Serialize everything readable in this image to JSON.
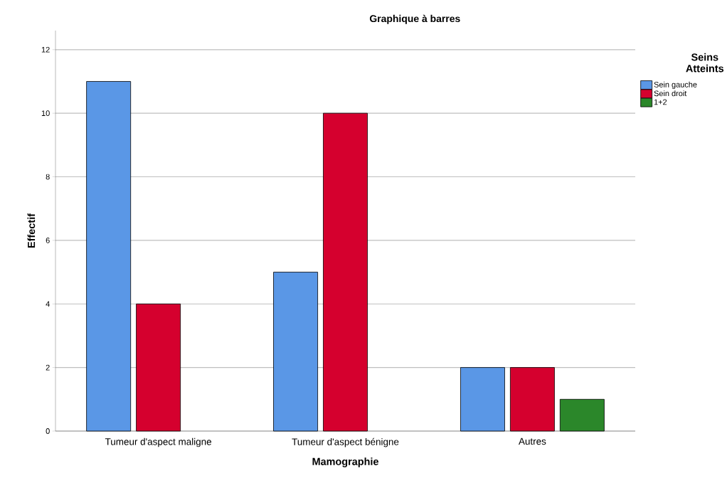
{
  "chart_data": {
    "type": "bar",
    "title": "Graphique à barres",
    "xlabel": "Mamographie",
    "ylabel": "Effectif",
    "legend_title": "Seins Atteints",
    "categories": [
      "Tumeur d'aspect maligne",
      "Tumeur d'aspect bénigne",
      "Autres"
    ],
    "series": [
      {
        "name": "Sein gauche",
        "color": "#5a97e6",
        "values": [
          11,
          5,
          2
        ]
      },
      {
        "name": "Sein droit",
        "color": "#d5002e",
        "values": [
          4,
          10,
          2
        ]
      },
      {
        "name": "1+2",
        "color": "#2b872a",
        "values": [
          null,
          null,
          1
        ]
      }
    ],
    "ylim": [
      0,
      12.6
    ],
    "yticks": [
      0,
      2,
      4,
      6,
      8,
      10,
      12
    ],
    "grid": "y",
    "legend": "top right"
  }
}
